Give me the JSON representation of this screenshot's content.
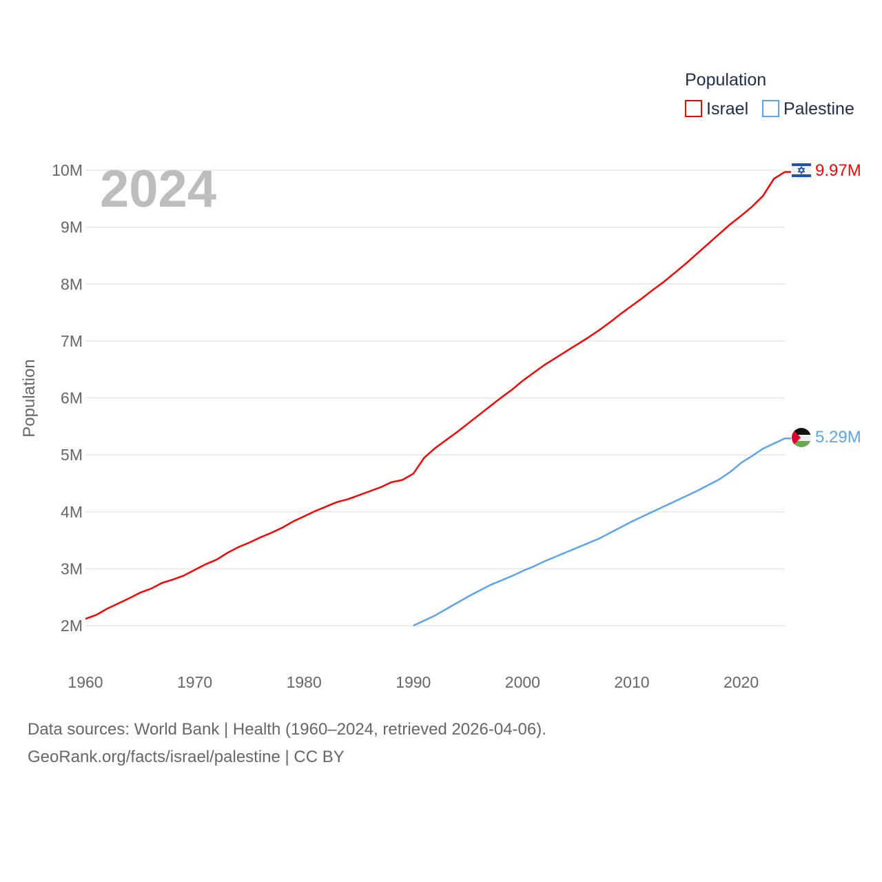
{
  "chart_data": {
    "type": "line",
    "title": "",
    "year_label": "2024",
    "legend_title": "Population",
    "legend_position": "top-right",
    "xlabel": "",
    "ylabel": "Population",
    "xlim": [
      1960,
      2024
    ],
    "ylim": [
      2000000,
      10000000
    ],
    "x_ticks": [
      1960,
      1970,
      1980,
      1990,
      2000,
      2010,
      2020
    ],
    "x_tick_labels": [
      "1960",
      "1970",
      "1980",
      "1990",
      "2000",
      "2010",
      "2020"
    ],
    "y_ticks": [
      2000000,
      3000000,
      4000000,
      5000000,
      6000000,
      7000000,
      8000000,
      9000000,
      10000000
    ],
    "y_tick_labels": [
      "2M",
      "3M",
      "4M",
      "5M",
      "6M",
      "7M",
      "8M",
      "9M",
      "10M"
    ],
    "grid": true,
    "series": [
      {
        "name": "Israel",
        "color": "#ff0000",
        "end_label": "9.97M",
        "flag": "israel-flag",
        "x_start": 1960,
        "values_millions": [
          2.12,
          2.19,
          2.3,
          2.39,
          2.48,
          2.58,
          2.65,
          2.75,
          2.81,
          2.88,
          2.98,
          3.08,
          3.16,
          3.28,
          3.38,
          3.46,
          3.55,
          3.63,
          3.72,
          3.83,
          3.92,
          4.01,
          4.09,
          4.17,
          4.22,
          4.29,
          4.36,
          4.43,
          4.52,
          4.56,
          4.67,
          4.95,
          5.12,
          5.26,
          5.4,
          5.55,
          5.7,
          5.85,
          6.0,
          6.14,
          6.3,
          6.44,
          6.58,
          6.7,
          6.82,
          6.94,
          7.06,
          7.19,
          7.33,
          7.48,
          7.62,
          7.76,
          7.91,
          8.05,
          8.21,
          8.37,
          8.54,
          8.71,
          8.88,
          9.05,
          9.2,
          9.36,
          9.55,
          9.85,
          9.97
        ]
      },
      {
        "name": "Palestine",
        "color": "#5ba3ea",
        "end_label": "5.29M",
        "flag": "palestine-flag",
        "x_start": 1990,
        "values_millions": [
          2.0,
          2.09,
          2.18,
          2.29,
          2.4,
          2.51,
          2.61,
          2.71,
          2.79,
          2.87,
          2.96,
          3.04,
          3.13,
          3.21,
          3.29,
          3.37,
          3.45,
          3.53,
          3.63,
          3.73,
          3.83,
          3.92,
          4.01,
          4.1,
          4.19,
          4.28,
          4.37,
          4.47,
          4.57,
          4.7,
          4.86,
          4.98,
          5.11,
          5.2,
          5.29
        ]
      }
    ]
  },
  "footer": {
    "line1": "Data sources: World Bank | Health (1960–2024, retrieved 2026-04-06).",
    "line2": "GeoRank.org/facts/israel/palestine | CC BY"
  }
}
